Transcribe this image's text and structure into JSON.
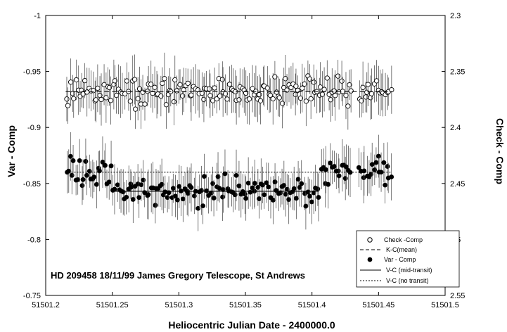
{
  "chart_data": {
    "type": "scatter",
    "title": "",
    "annotation": "HD 209458 18/11/99 James Gregory Telescope, St Andrews",
    "xlabel": "Heliocentric Julian Date - 2400000.0",
    "ylabel_left": "Var - Comp",
    "ylabel_right": "Check - Comp",
    "xlim": [
      51501.2,
      51501.5
    ],
    "ylim_left": [
      -1.0,
      -0.75
    ],
    "ylim_right": [
      2.3,
      2.55
    ],
    "left_axis_reversed": true,
    "right_axis_reversed": true,
    "x_ticks": [
      "51501.2",
      "51501.25",
      "51501.3",
      "51501.35",
      "51501.4",
      "51501.45",
      "51501.5"
    ],
    "y_left_ticks": [
      "-1",
      "-0.95",
      "-0.9",
      "-0.85",
      "-0.8",
      "-0.75"
    ],
    "y_right_ticks": [
      "2.3",
      "2.35",
      "2.4",
      "2.45",
      "2.5",
      "2.55"
    ],
    "legend_position": "bottom-right",
    "legend": [
      {
        "label": "Check -Comp",
        "style": "open-circle"
      },
      {
        "label": "K-C(mean)",
        "style": "dashed"
      },
      {
        "label": "Var - Comp",
        "style": "filled-circle"
      },
      {
        "label": "V-C  (mid-transit)",
        "style": "solid"
      },
      {
        "label": "V-C  (no  transit)",
        "style": "dotted"
      }
    ],
    "series": [
      {
        "name": "Check -Comp",
        "axis": "right",
        "marker": "open-circle",
        "time_ranges": [
          [
            51501.215,
            51501.305
          ],
          [
            51501.305,
            51501.43
          ],
          [
            51501.435,
            51501.46
          ]
        ],
        "mean": 2.368,
        "scatter": 0.012,
        "error_bar": 0.018,
        "n_points": 170
      },
      {
        "name": "Var - Comp",
        "axis": "left",
        "marker": "filled-circle",
        "time_ranges": [
          [
            51501.215,
            51501.305
          ],
          [
            51501.305,
            51501.43
          ],
          [
            51501.435,
            51501.46
          ]
        ],
        "out_of_transit_level": -0.86,
        "mid_transit_level": -0.843,
        "transit_window": [
          51501.25,
          51501.405
        ],
        "scatter": 0.012,
        "error_bar": 0.018,
        "n_points": 170
      }
    ],
    "lines": [
      {
        "name": "K-C(mean)",
        "axis": "right",
        "y": 2.368,
        "x_range": [
          51501.215,
          51501.46
        ],
        "style": "dashed"
      },
      {
        "name": "V-C  (no  transit)",
        "axis": "left",
        "y": -0.86,
        "x_range": [
          51501.215,
          51501.46
        ],
        "style": "dotted"
      },
      {
        "name": "V-C  (mid-transit)",
        "axis": "left",
        "y": -0.843,
        "x_range": [
          51501.25,
          51501.405
        ],
        "style": "solid"
      }
    ]
  }
}
